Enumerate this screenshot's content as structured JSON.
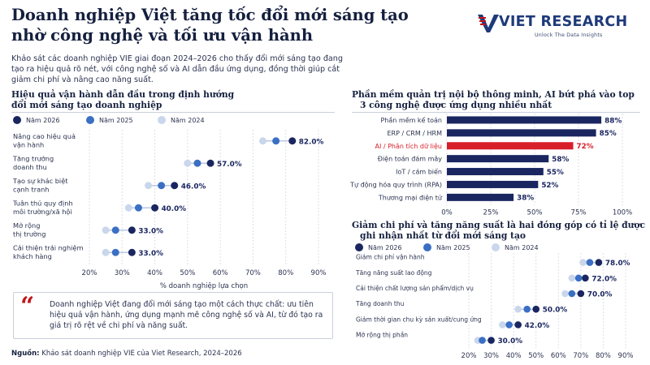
{
  "header": {
    "title_line1": "Doanh nghiệp Việt tăng tốc đổi mới sáng tạo",
    "title_line2": "nhờ công nghệ và tối ưu vận hành",
    "intro": "Khảo sát các doanh nghiệp VIE giai đoạn 2024–2026 cho thấy đổi mới sáng tạo đang tạo ra hiệu quả rõ nét, với công nghệ số và AI dẫn đầu ứng dụng, đồng thời giúp cắt giảm chi phí và nâng cao năng suất."
  },
  "logo": {
    "text": "VIET RESEARCH",
    "tagline": "Unlock The Data Insights",
    "color": "#1f3a7a",
    "accent": "#c3151b"
  },
  "colors": {
    "navy": "#1a2660",
    "blue": "#3a6fc4",
    "light": "#c9d6ec",
    "red": "#d81e28",
    "connector": "#b9c7e2"
  },
  "left_chart": {
    "title_line1": "Hiệu quả vận hành dẫn đầu trong định hướng",
    "title_line2": "đổi mới sáng tạo doanh nghiệp",
    "legend": [
      "Năm 2026",
      "Năm 2025",
      "Năm 2024"
    ]
  },
  "top_right": {
    "title_line1": "Phần mềm quản trị nội bộ thông minh, AI bứt phá vào top",
    "title_line2": "3 công nghệ được ứng dụng nhiều nhất"
  },
  "bottom_right": {
    "title_line1": "Giảm chi phí và tăng năng suất là hai đóng góp có tỉ lệ được",
    "title_line2": "ghi nhận nhất từ đổi mới sáng tạo",
    "legend": [
      "Năm 2026",
      "Năm 2025",
      "Năm 2024"
    ]
  },
  "quote": {
    "mark": "“",
    "text": "Doanh nghiệp Việt đang đổi mới sáng tạo một cách thực chất: ưu tiên hiệu quả vận hành, ứng dụng mạnh mẽ công nghệ số và AI, từ đó tạo ra giá trị rõ rệt về chi phí và năng suất."
  },
  "source": {
    "label": "Nguồn:",
    "text": " Khảo sát doanh nghiệp VIE của Viet Research, 2024–2026"
  },
  "chart_data": [
    {
      "type": "scatter",
      "title": "Hiệu quả vận hành dẫn đầu trong định hướng đổi mới sáng tạo doanh nghiệp",
      "xlabel": "% doanh nghiệp lựa chọn",
      "xlim": [
        20,
        90
      ],
      "xticks": [
        20,
        30,
        40,
        50,
        60,
        70,
        80,
        90
      ],
      "tick_suffix": "%",
      "grid": true,
      "legend_position": "top",
      "categories": [
        [
          "Nâng cao hiệu quả",
          "vận hành"
        ],
        [
          "Tăng trưởng",
          "doanh thu"
        ],
        [
          "Tạo sự khác biệt",
          "cạnh tranh"
        ],
        [
          "Tuân thủ quy định",
          "môi trường/xã hội"
        ],
        [
          "Mở rộng",
          "thị trường"
        ],
        [
          "Cải thiện trải nghiệm",
          "khách hàng"
        ]
      ],
      "series": [
        {
          "name": "Năm 2026",
          "values": [
            82,
            57,
            46,
            40,
            33,
            33
          ]
        },
        {
          "name": "Năm 2025",
          "values": [
            77,
            53,
            42,
            35,
            28,
            28
          ]
        },
        {
          "name": "Năm 2024",
          "values": [
            73,
            50,
            38,
            32,
            25,
            25
          ]
        }
      ],
      "labels": [
        "82.0%",
        "57.0%",
        "46.0%",
        "40.0%",
        "33.0%",
        "33.0%"
      ]
    },
    {
      "type": "bar",
      "orientation": "horizontal",
      "title": "Phần mềm quản trị nội bộ thông minh, AI bứt phá vào top 3 công nghệ được ứng dụng nhiều nhất",
      "xlim": [
        0,
        100
      ],
      "xticks": [
        0,
        25,
        50,
        75,
        100
      ],
      "tick_suffix": "%",
      "grid": true,
      "categories": [
        "Phần mềm kế toán",
        "ERP / CRM / HRM",
        "AI / Phân tích dữ liệu",
        "Điện toán đám mây",
        "IoT / cảm biến",
        "Tự động hóa quy trình (RPA)",
        "Thương mại điện tử"
      ],
      "values": [
        88,
        85,
        72,
        58,
        55,
        52,
        38
      ],
      "labels": [
        "88%",
        "85%",
        "72%",
        "58%",
        "55%",
        "52%",
        "38%"
      ],
      "highlight_index": 2
    },
    {
      "type": "scatter",
      "title": "Giảm chi phí và tăng năng suất là hai đóng góp có tỉ lệ được ghi nhận nhất từ đổi mới sáng tạo",
      "xlim": [
        20,
        90
      ],
      "xticks": [
        20,
        30,
        40,
        50,
        60,
        70,
        80,
        90
      ],
      "tick_suffix": "%",
      "grid": true,
      "legend_position": "top",
      "categories": [
        "Giảm chi phí vận hành",
        "Tăng năng suất lao động",
        "Cải thiện chất lượng sản phẩm/dịch vụ",
        "Tăng doanh thu",
        "Giảm thời gian chu kỳ sản xuất/cung ứng",
        "Mở rộng thị phần"
      ],
      "series": [
        {
          "name": "Năm 2026",
          "values": [
            78,
            72,
            70,
            50,
            42,
            30
          ]
        },
        {
          "name": "Năm 2025",
          "values": [
            74,
            69,
            66,
            46,
            38,
            26
          ]
        },
        {
          "name": "Năm 2024",
          "values": [
            71,
            66,
            63,
            42,
            35,
            24
          ]
        }
      ],
      "labels": [
        "78.0%",
        "72.0%",
        "70.0%",
        "50.0%",
        "42.0%",
        "30.0%"
      ]
    }
  ]
}
